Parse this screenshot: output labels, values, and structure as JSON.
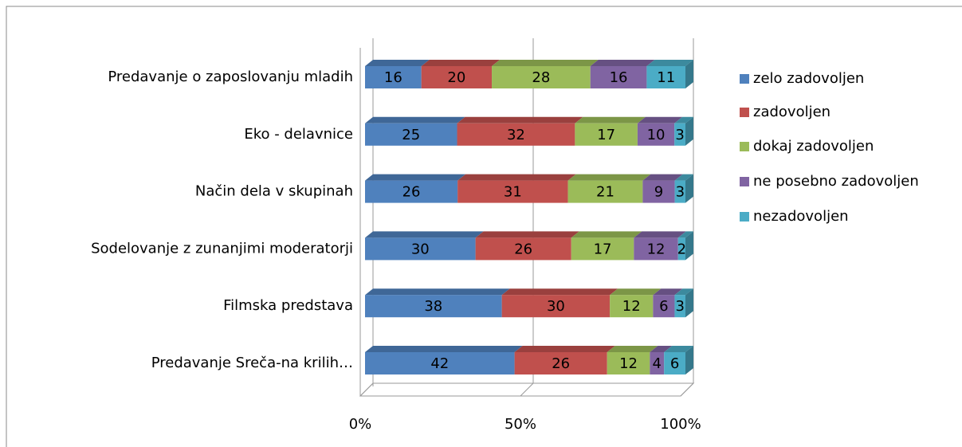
{
  "chart_data": {
    "type": "stacked-bar-100",
    "categories": [
      "Predavanje o zaposlovanju mladih",
      "Eko - delavnice",
      "Način dela v skupinah",
      "Sodelovanje z zunanjimi moderatorji",
      "Filmska predstava",
      "Predavanje Sreča-na krilih…"
    ],
    "series": [
      {
        "name": "zelo zadovoljen",
        "color": "#4f81bd",
        "values": [
          16,
          25,
          26,
          30,
          38,
          42
        ]
      },
      {
        "name": "zadovoljen",
        "color": "#c0504d",
        "values": [
          20,
          32,
          31,
          26,
          30,
          26
        ]
      },
      {
        "name": "dokaj zadovoljen",
        "color": "#9bbb59",
        "values": [
          28,
          17,
          21,
          17,
          12,
          12
        ]
      },
      {
        "name": "ne posebno zadovoljen",
        "color": "#8064a2",
        "values": [
          16,
          10,
          9,
          12,
          6,
          4
        ]
      },
      {
        "name": "nezadovoljen",
        "color": "#4bacc6",
        "values": [
          11,
          3,
          3,
          2,
          3,
          6
        ]
      }
    ],
    "xlim": [
      0,
      100
    ],
    "xticks": [
      {
        "value": 0,
        "label": "0%"
      },
      {
        "value": 50,
        "label": "50%"
      },
      {
        "value": 100,
        "label": "100%"
      }
    ],
    "grid": true,
    "legend": "right"
  }
}
